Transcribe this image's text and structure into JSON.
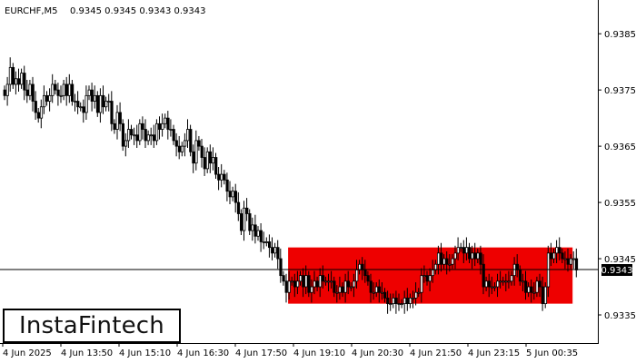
{
  "header": {
    "symbol": "EURCHF,M5",
    "ohlc": "0.9345 0.9345 0.9343 0.9343"
  },
  "logo": {
    "text": "InstaFintech"
  },
  "colors": {
    "background": "#ffffff",
    "candle": "#000000",
    "zone": "#ee0000",
    "price_tag_bg": "#000000",
    "price_tag_text": "#ffffff"
  },
  "chart_data": {
    "type": "candlestick",
    "title": "",
    "xlabel": "",
    "ylabel": "",
    "ylim": [
      0.933,
      0.9391
    ],
    "yticks": [
      "0.9335",
      "0.9345",
      "0.9355",
      "0.9365",
      "0.9375",
      "0.9385"
    ],
    "yticks_values": [
      0.9335,
      0.9345,
      0.9355,
      0.9365,
      0.9375,
      0.9385
    ],
    "xticks": [
      "4 Jun 2025",
      "4 Jun 13:50",
      "4 Jun 15:10",
      "4 Jun 16:30",
      "4 Jun 17:50",
      "4 Jun 19:10",
      "4 Jun 20:30",
      "4 Jun 21:50",
      "4 Jun 23:15",
      "5 Jun 00:35"
    ],
    "current_price": "0.9343",
    "current_price_value": 0.9343,
    "zone": {
      "from": 0.9337,
      "to": 0.9347,
      "start_bar": 101,
      "end_bar": 202
    },
    "grid": false,
    "closes": [
      0.9374,
      0.9376,
      0.9379,
      0.9376,
      0.9377,
      0.9376,
      0.9378,
      0.9375,
      0.9374,
      0.9376,
      0.9373,
      0.9371,
      0.937,
      0.9372,
      0.9374,
      0.9373,
      0.9374,
      0.9376,
      0.9375,
      0.9374,
      0.9374,
      0.9376,
      0.9374,
      0.9376,
      0.9373,
      0.9373,
      0.9372,
      0.9372,
      0.9371,
      0.9374,
      0.9375,
      0.9373,
      0.9374,
      0.9371,
      0.9374,
      0.9372,
      0.9373,
      0.9373,
      0.9369,
      0.9368,
      0.9371,
      0.9369,
      0.9365,
      0.9366,
      0.9368,
      0.9367,
      0.9367,
      0.9366,
      0.9369,
      0.9368,
      0.9366,
      0.9367,
      0.9367,
      0.9366,
      0.9369,
      0.9368,
      0.9369,
      0.937,
      0.9368,
      0.9368,
      0.9366,
      0.9365,
      0.9364,
      0.9365,
      0.9366,
      0.9368,
      0.9364,
      0.9362,
      0.9366,
      0.9365,
      0.9363,
      0.9361,
      0.9364,
      0.9362,
      0.9363,
      0.936,
      0.9359,
      0.936,
      0.9359,
      0.9357,
      0.9356,
      0.9357,
      0.9355,
      0.9353,
      0.935,
      0.9354,
      0.9353,
      0.935,
      0.9351,
      0.9349,
      0.935,
      0.9348,
      0.9348,
      0.9348,
      0.9347,
      0.9346,
      0.9347,
      0.9345,
      0.9342,
      0.9341,
      0.9339,
      0.9341,
      0.9341,
      0.934,
      0.9341,
      0.9342,
      0.934,
      0.9342,
      0.9339,
      0.934,
      0.9341,
      0.934,
      0.9342,
      0.9341,
      0.9341,
      0.9341,
      0.9341,
      0.9339,
      0.9339,
      0.934,
      0.9339,
      0.9341,
      0.934,
      0.934,
      0.9341,
      0.9343,
      0.9344,
      0.9343,
      0.9342,
      0.9341,
      0.9339,
      0.9339,
      0.934,
      0.9339,
      0.9339,
      0.9338,
      0.9337,
      0.9337,
      0.9338,
      0.9337,
      0.9337,
      0.9337,
      0.9338,
      0.9337,
      0.9338,
      0.9338,
      0.9339,
      0.9339,
      0.9342,
      0.9342,
      0.9341,
      0.9342,
      0.9343,
      0.9344,
      0.9346,
      0.9344,
      0.9345,
      0.9344,
      0.9344,
      0.9345,
      0.9346,
      0.9347,
      0.9347,
      0.9346,
      0.9347,
      0.9345,
      0.9346,
      0.9345,
      0.9346,
      0.9344,
      0.934,
      0.9341,
      0.934,
      0.934,
      0.934,
      0.9341,
      0.9341,
      0.9341,
      0.9341,
      0.9341,
      0.9342,
      0.9344,
      0.9343,
      0.9341,
      0.9341,
      0.9339,
      0.934,
      0.9339,
      0.9339,
      0.9341,
      0.934,
      0.9337,
      0.934,
      0.9346,
      0.9345,
      0.9346,
      0.9347,
      0.9346,
      0.9345,
      0.9345,
      0.9344,
      0.9345,
      0.9345,
      0.9343
    ]
  }
}
